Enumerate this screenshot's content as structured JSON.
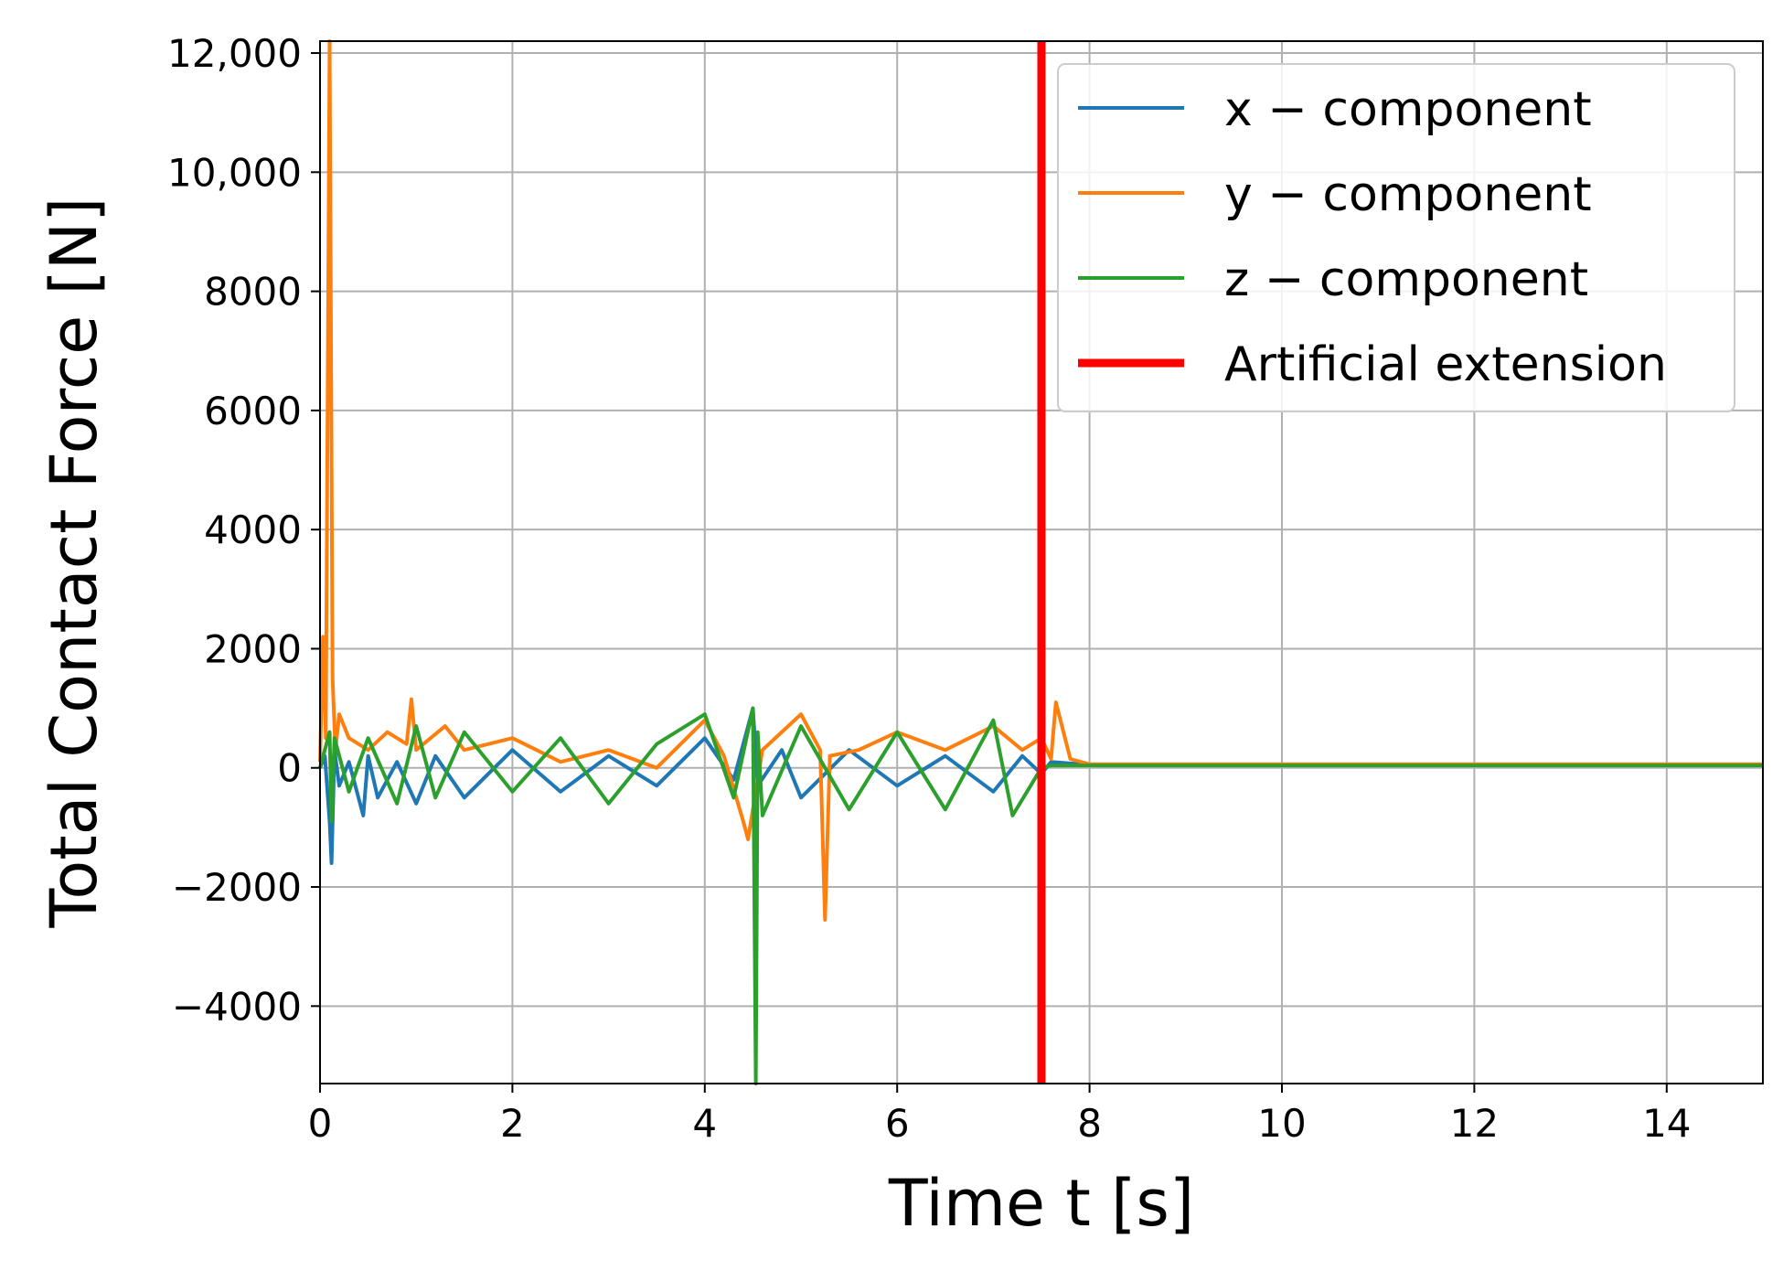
{
  "chart_data": {
    "type": "line",
    "title": "",
    "xlabel": "Time t [s]",
    "ylabel": "Total Contact Force [N]",
    "xlim": [
      0,
      15
    ],
    "ylim": [
      -5300,
      12200
    ],
    "x_ticks": [
      0,
      2,
      4,
      6,
      8,
      10,
      12,
      14
    ],
    "x_tick_labels": [
      "0",
      "2",
      "4",
      "6",
      "8",
      "10",
      "12",
      "14"
    ],
    "y_ticks": [
      -4000,
      -2000,
      0,
      2000,
      4000,
      6000,
      8000,
      10000,
      12000
    ],
    "y_tick_labels": [
      "−4000",
      "−2000",
      "0",
      "2000",
      "4000",
      "6000",
      "8000",
      "10,000",
      "12,000"
    ],
    "grid": true,
    "legend_position": "top-right",
    "series": [
      {
        "name": "x − component",
        "color": "#1f77b4",
        "x": [
          0.0,
          0.05,
          0.1,
          0.12,
          0.15,
          0.2,
          0.3,
          0.45,
          0.5,
          0.6,
          0.8,
          1.0,
          1.2,
          1.5,
          2.0,
          2.5,
          3.0,
          3.5,
          4.0,
          4.3,
          4.5,
          4.55,
          4.8,
          5.0,
          5.5,
          6.0,
          6.5,
          7.0,
          7.3,
          7.5,
          7.6,
          8.0,
          10.0,
          12.0,
          15.0
        ],
        "y": [
          0,
          200,
          -900,
          -1600,
          300,
          -300,
          100,
          -800,
          200,
          -500,
          100,
          -600,
          200,
          -500,
          300,
          -400,
          200,
          -300,
          500,
          -200,
          1000,
          -300,
          300,
          -500,
          300,
          -300,
          200,
          -400,
          200,
          -100,
          100,
          50,
          50,
          50,
          50
        ]
      },
      {
        "name": "y − component",
        "color": "#ff7f0e",
        "x": [
          0.0,
          0.03,
          0.06,
          0.1,
          0.13,
          0.16,
          0.2,
          0.3,
          0.5,
          0.7,
          0.9,
          0.95,
          1.0,
          1.3,
          1.5,
          2.0,
          2.5,
          3.0,
          3.5,
          4.0,
          4.2,
          4.4,
          4.45,
          4.6,
          5.0,
          5.2,
          5.25,
          5.3,
          5.6,
          6.0,
          6.5,
          7.0,
          7.3,
          7.5,
          7.6,
          7.65,
          7.8,
          8.0,
          10.0,
          12.0,
          15.0
        ],
        "y": [
          100,
          2200,
          500,
          12200,
          1500,
          300,
          900,
          500,
          300,
          600,
          400,
          1150,
          300,
          700,
          300,
          500,
          100,
          300,
          0,
          800,
          200,
          -900,
          -1200,
          300,
          900,
          300,
          -2550,
          200,
          300,
          600,
          300,
          700,
          300,
          500,
          150,
          1100,
          150,
          60,
          60,
          60,
          60
        ]
      },
      {
        "name": "z − component",
        "color": "#2ca02c",
        "x": [
          0.0,
          0.1,
          0.12,
          0.15,
          0.3,
          0.5,
          0.8,
          1.0,
          1.2,
          1.5,
          2.0,
          2.5,
          3.0,
          3.5,
          4.0,
          4.3,
          4.5,
          4.53,
          4.55,
          4.6,
          5.0,
          5.5,
          6.0,
          6.5,
          7.0,
          7.2,
          7.5,
          7.6,
          8.0,
          10.0,
          12.0,
          15.0
        ],
        "y": [
          0,
          600,
          -900,
          500,
          -400,
          500,
          -600,
          700,
          -500,
          600,
          -400,
          500,
          -600,
          400,
          900,
          -500,
          1000,
          -5300,
          600,
          -800,
          700,
          -700,
          600,
          -700,
          800,
          -800,
          0,
          40,
          40,
          40,
          40,
          40
        ]
      }
    ],
    "annotations": [
      {
        "type": "vline",
        "x": 7.5,
        "color": "#ff0000",
        "label": "Artificial extension"
      }
    ]
  }
}
